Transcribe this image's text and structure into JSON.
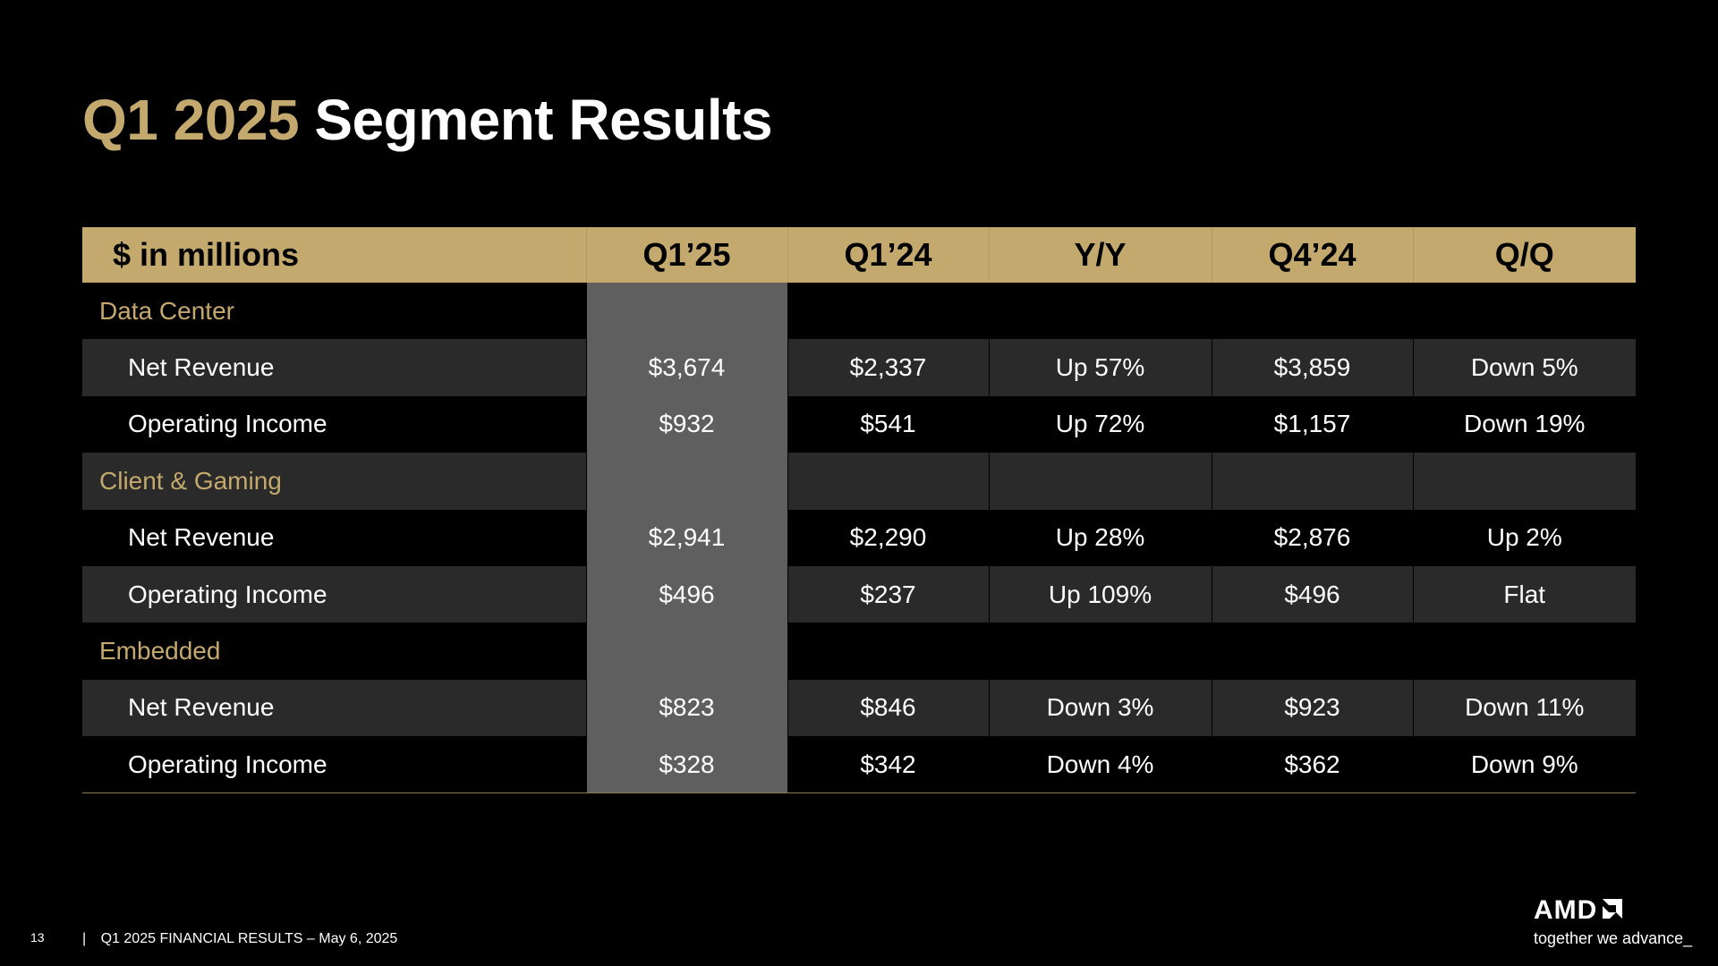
{
  "title": {
    "accent": "Q1 2025",
    "rest": "Segment Results"
  },
  "table": {
    "headers": [
      "$ in millions",
      "Q1’25",
      "Q1’24",
      "Y/Y",
      "Q4’24",
      "Q/Q"
    ],
    "sections": [
      {
        "name": "Data Center",
        "rows": [
          {
            "label": "Net Revenue",
            "values": [
              "$3,674",
              "$2,337",
              "Up 57%",
              "$3,859",
              "Down 5%"
            ]
          },
          {
            "label": "Operating Income",
            "values": [
              "$932",
              "$541",
              "Up 72%",
              "$1,157",
              "Down 19%"
            ]
          }
        ]
      },
      {
        "name": "Client & Gaming",
        "rows": [
          {
            "label": "Net Revenue",
            "values": [
              "$2,941",
              "$2,290",
              "Up 28%",
              "$2,876",
              "Up 2%"
            ]
          },
          {
            "label": "Operating Income",
            "values": [
              "$496",
              "$237",
              "Up 109%",
              "$496",
              "Flat"
            ]
          }
        ]
      },
      {
        "name": "Embedded",
        "rows": [
          {
            "label": "Net Revenue",
            "values": [
              "$823",
              "$846",
              "Down 3%",
              "$923",
              "Down 11%"
            ]
          },
          {
            "label": "Operating Income",
            "values": [
              "$328",
              "$342",
              "Down 4%",
              "$362",
              "Down 9%"
            ]
          }
        ]
      }
    ]
  },
  "footer": {
    "page_number": "13",
    "separator": "|",
    "text": "Q1 2025 FINANCIAL RESULTS – May 6, 2025"
  },
  "brand": {
    "name": "AMD",
    "tagline": "together we advance_",
    "icon": "amd-arrow-logo"
  },
  "colors": {
    "accent_gold": "#c4a96e",
    "background": "#000000",
    "row_stripe": "#2a2a2a",
    "highlight_column": "#5f5f5f"
  }
}
